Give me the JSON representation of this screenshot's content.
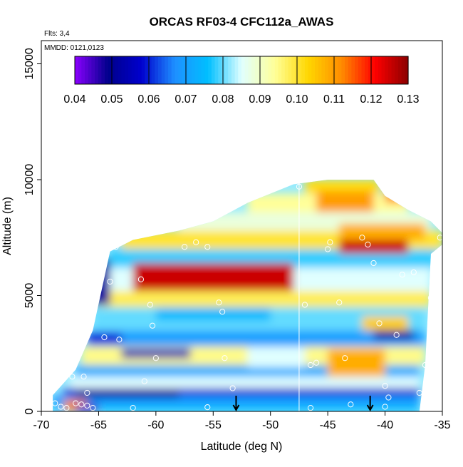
{
  "chart_data": {
    "type": "heatmap",
    "title": "ORCAS RF03-4 CFC112a_AWAS",
    "flights_label": "Flts: 3,4",
    "dates_label": "MMDD: 0121,0123",
    "xlabel": "Latitude (deg N)",
    "ylabel": "Altitude (m)",
    "xlim": [
      -70,
      -35
    ],
    "ylim": [
      0,
      16000
    ],
    "x_ticks": [
      -70,
      -65,
      -60,
      -55,
      -50,
      -45,
      -40,
      -35
    ],
    "x_tick_labels": [
      "-70",
      "-65",
      "-60",
      "-55",
      "-50",
      "-45",
      "-40",
      "-35"
    ],
    "y_ticks": [
      0,
      5000,
      10000,
      15000
    ],
    "y_tick_labels": [
      "0",
      "5000",
      "10000",
      "15000"
    ],
    "colorbar": {
      "min": 0.04,
      "max": 0.13,
      "ticks": [
        0.04,
        0.05,
        0.06,
        0.07,
        0.08,
        0.09,
        0.1,
        0.11,
        0.12,
        0.13
      ],
      "tick_labels": [
        "0.04",
        "0.05",
        "0.06",
        "0.07",
        "0.08",
        "0.09",
        "0.10",
        "0.11",
        "0.12",
        "0.13"
      ],
      "colors": [
        "#8B00FF",
        "#00008B",
        "#0000CD",
        "#1E90FF",
        "#00BFFF",
        "#E0FFFF",
        "#FFFF99",
        "#FFD700",
        "#FF8C00",
        "#FF0000",
        "#8B0000"
      ]
    },
    "domain_outline": [
      [
        -69,
        0
      ],
      [
        -69,
        700
      ],
      [
        -67,
        1800
      ],
      [
        -65.5,
        3500
      ],
      [
        -64,
        6900
      ],
      [
        -62,
        7400
      ],
      [
        -58,
        7800
      ],
      [
        -55,
        8200
      ],
      [
        -52,
        9000
      ],
      [
        -48,
        9800
      ],
      [
        -45,
        10000
      ],
      [
        -41,
        10000
      ],
      [
        -40,
        9300
      ],
      [
        -38,
        8700
      ],
      [
        -36,
        8200
      ],
      [
        -35,
        7700
      ],
      [
        -35,
        7200
      ],
      [
        -36,
        6800
      ],
      [
        -36.5,
        2000
      ],
      [
        -37,
        0
      ]
    ],
    "layers": [
      {
        "z0": 0,
        "z1": 300,
        "x0": -69,
        "x1": -37,
        "value": 0.075
      },
      {
        "z0": 300,
        "z1": 700,
        "x0": -69,
        "x1": -37,
        "value": 0.068
      },
      {
        "z0": 700,
        "z1": 1000,
        "x0": -68,
        "x1": -37,
        "value": 0.058
      },
      {
        "z0": 1000,
        "z1": 1500,
        "x0": -67.5,
        "x1": -37,
        "value": 0.085
      },
      {
        "z0": 1500,
        "z1": 2000,
        "x0": -67,
        "x1": -37,
        "value": 0.072
      },
      {
        "z0": 2000,
        "z1": 2800,
        "x0": -66.5,
        "x1": -36.5,
        "value": 0.095
      },
      {
        "z0": 2800,
        "z1": 3500,
        "x0": -66,
        "x1": -36.5,
        "value": 0.07
      },
      {
        "z0": 3500,
        "z1": 4500,
        "x0": -65.5,
        "x1": -36.5,
        "value": 0.08
      },
      {
        "z0": 4500,
        "z1": 5200,
        "x0": -65,
        "x1": -36,
        "value": 0.098
      },
      {
        "z0": 5200,
        "z1": 6200,
        "x0": -64.5,
        "x1": -36,
        "value": 0.085
      },
      {
        "z0": 6200,
        "z1": 7000,
        "x0": -64,
        "x1": -35.5,
        "value": 0.078
      },
      {
        "z0": 7000,
        "z1": 7800,
        "x0": -63,
        "x1": -35,
        "value": 0.1
      },
      {
        "z0": 7800,
        "z1": 8600,
        "x0": -58,
        "x1": -36,
        "value": 0.088
      },
      {
        "z0": 8600,
        "z1": 9400,
        "x0": -52,
        "x1": -38,
        "value": 0.094
      },
      {
        "z0": 9400,
        "z1": 10000,
        "x0": -47,
        "x1": -40.5,
        "value": 0.102
      }
    ],
    "features": [
      {
        "x0": -62,
        "x1": -48,
        "z0": 5200,
        "z1": 6400,
        "value": 0.125
      },
      {
        "x0": -44,
        "x1": -38,
        "z0": 6800,
        "z1": 7600,
        "value": 0.125
      },
      {
        "x0": -44,
        "x1": -36.5,
        "z0": 7400,
        "z1": 8100,
        "value": 0.108
      },
      {
        "x0": -46,
        "x1": -41,
        "z0": 8600,
        "z1": 9500,
        "value": 0.11
      },
      {
        "x0": -40,
        "x1": -36.5,
        "z0": 9000,
        "z1": 10000,
        "value": 0.112
      },
      {
        "x0": -66,
        "x1": -64,
        "z0": 4600,
        "z1": 6600,
        "value": 0.052
      },
      {
        "x0": -63,
        "x1": -57,
        "z0": 2300,
        "z1": 2700,
        "value": 0.055
      },
      {
        "x0": -67,
        "x1": -58,
        "z0": 600,
        "z1": 950,
        "value": 0.05
      },
      {
        "x0": -41,
        "x1": -37.5,
        "z0": 3100,
        "z1": 3500,
        "value": 0.052
      },
      {
        "x0": -66,
        "x1": -63,
        "z0": 2900,
        "z1": 3400,
        "value": 0.06
      },
      {
        "x0": -60,
        "x1": -50,
        "z0": 3900,
        "z1": 4500,
        "value": 0.075
      },
      {
        "x0": -52,
        "x1": -47,
        "z0": 1900,
        "z1": 2800,
        "value": 0.085
      },
      {
        "x0": -45,
        "x1": -40,
        "z0": 1500,
        "z1": 2700,
        "value": 0.108
      },
      {
        "x0": -42,
        "x1": -38,
        "z0": 3500,
        "z1": 4100,
        "value": 0.104
      },
      {
        "x0": -68,
        "x1": -66,
        "z0": 0,
        "z1": 500,
        "value": 0.112
      },
      {
        "x0": -67,
        "x1": -65,
        "z0": 0,
        "z1": 300,
        "value": 0.045
      }
    ],
    "sample_points": [
      [
        -68.8,
        350
      ],
      [
        -68.3,
        200
      ],
      [
        -67.8,
        150
      ],
      [
        -67.0,
        350
      ],
      [
        -66.5,
        300
      ],
      [
        -66.0,
        250
      ],
      [
        -65.5,
        150
      ],
      [
        -68.0,
        1500
      ],
      [
        -67.3,
        1500
      ],
      [
        -66.3,
        1500
      ],
      [
        -66.0,
        800
      ],
      [
        -64.5,
        3200
      ],
      [
        -63.2,
        3100
      ],
      [
        -64.0,
        5600
      ],
      [
        -63.5,
        7100
      ],
      [
        -61.3,
        5700
      ],
      [
        -60.5,
        4600
      ],
      [
        -60.0,
        2300
      ],
      [
        -60.3,
        3700
      ],
      [
        -61.0,
        1300
      ],
      [
        -57.5,
        7100
      ],
      [
        -56.5,
        7300
      ],
      [
        -55.5,
        7100
      ],
      [
        -54.5,
        4700
      ],
      [
        -54.2,
        4300
      ],
      [
        -54.0,
        2300
      ],
      [
        -53.3,
        1000
      ],
      [
        -47.5,
        9700
      ],
      [
        -47.0,
        4600
      ],
      [
        -46.5,
        2000
      ],
      [
        -46.0,
        2100
      ],
      [
        -45.0,
        7000
      ],
      [
        -44.8,
        7300
      ],
      [
        -44.0,
        4700
      ],
      [
        -43.5,
        2300
      ],
      [
        -42.0,
        7500
      ],
      [
        -41.5,
        7200
      ],
      [
        -41.0,
        6400
      ],
      [
        -40.5,
        3800
      ],
      [
        -40.0,
        1100
      ],
      [
        -39.7,
        600
      ],
      [
        -39.0,
        3300
      ],
      [
        -38.5,
        5900
      ],
      [
        -37.5,
        6000
      ],
      [
        -37.0,
        800
      ],
      [
        -36.5,
        2000
      ],
      [
        -36.0,
        4900
      ],
      [
        -35.2,
        7500
      ],
      [
        -43.0,
        300
      ],
      [
        -40.0,
        200
      ],
      [
        -46.5,
        150
      ],
      [
        -62.0,
        150
      ],
      [
        -55.5,
        180
      ]
    ],
    "flight_markers_lat": [
      -53.0,
      -41.3
    ],
    "vertical_line_lat": -47.5
  }
}
